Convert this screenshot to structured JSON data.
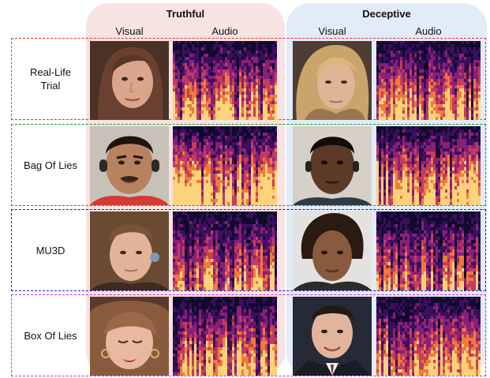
{
  "groups": {
    "truthful": {
      "title": "Truthful",
      "col_visual": "Visual",
      "col_audio": "Audio",
      "bg": "#f7e3e1"
    },
    "deceptive": {
      "title": "Deceptive",
      "col_visual": "Visual",
      "col_audio": "Audio",
      "bg": "#e2ebf8"
    }
  },
  "rows": [
    {
      "label_lines": [
        "Real-Life",
        "Trial"
      ],
      "border_color": "#e5322d"
    },
    {
      "label_lines": [
        "Bag Of Lies"
      ],
      "border_color": "#1a9a2a"
    },
    {
      "label_lines": [
        "MU3D"
      ],
      "border_color": "#1a22b4"
    },
    {
      "label_lines": [
        "Box Of Lies"
      ],
      "border_color": "#d62ad6"
    }
  ],
  "colors": {
    "spectrogram_dark": "#120a2e",
    "spectrogram_mid": "#8a1f78",
    "spectrogram_hot": "#f07a3a",
    "spectrogram_peak": "#fbd37a"
  }
}
